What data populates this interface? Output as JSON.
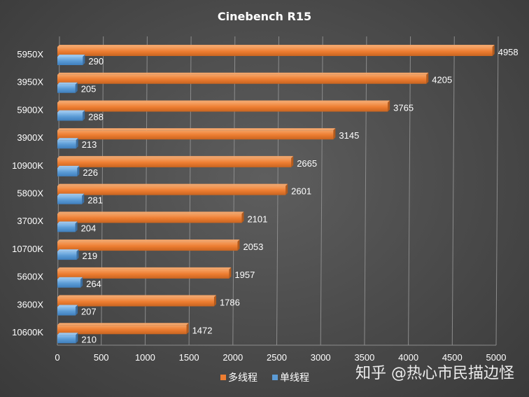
{
  "chart_data": {
    "type": "bar",
    "orientation": "horizontal",
    "title": "Cinebench  R15",
    "categories": [
      "5950X",
      "3950X",
      "5900X",
      "3900X",
      "10900K",
      "5800X",
      "3700X",
      "10700K",
      "5600X",
      "3600X",
      "10600K"
    ],
    "series": [
      {
        "name": "多线程",
        "color": "#ed7d31",
        "values": [
          4958,
          4205,
          3765,
          3145,
          2665,
          2601,
          2101,
          2053,
          1957,
          1786,
          1472
        ]
      },
      {
        "name": "单线程",
        "color": "#5b9bd5",
        "values": [
          290,
          205,
          288,
          213,
          226,
          281,
          204,
          219,
          264,
          207,
          210
        ]
      }
    ],
    "xlim": [
      0,
      5000
    ],
    "xticks": [
      "0",
      "500",
      "1000",
      "1500",
      "2000",
      "2500",
      "3000",
      "3500",
      "4000",
      "4500",
      "5000"
    ],
    "grid": true,
    "legend_position": "bottom"
  },
  "watermark": "知乎 @热心市民描边怪"
}
